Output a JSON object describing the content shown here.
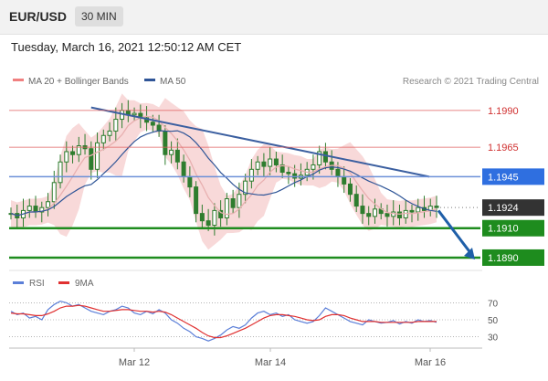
{
  "header": {
    "symbol": "EUR/USD",
    "timeframe": "30 MIN",
    "datetime": "Tuesday, March 16, 2021 12:50:12 AM CET"
  },
  "legend": {
    "ma20_bb": "MA 20 + Bollinger Bands",
    "ma50": "MA 50",
    "copyright": "Research © 2021 Trading Central"
  },
  "colors": {
    "ma20": "#e8b0b0",
    "ma50": "#2f5597",
    "bollinger": "#f5cccc",
    "candle": "#2e7d2e",
    "support": "#1e8c1e",
    "resistance": "#e06060",
    "trendline": "#3b5fa0",
    "pivot_line": "#6b8fd8",
    "current": "#333333",
    "arrow": "#1f5fa8",
    "rsi": "#5b7fd8",
    "rsi_ma": "#e03030"
  },
  "chart_data": [
    {
      "type": "candlestick",
      "title": "EUR/USD",
      "timeframe": "30 MIN",
      "x_ticks": [
        "Mar 12",
        "Mar 14",
        "Mar 16"
      ],
      "ylim": [
        1.1885,
        1.1998
      ],
      "close_path": [
        1.192,
        1.1917,
        1.1922,
        1.1925,
        1.1921,
        1.1924,
        1.1928,
        1.1941,
        1.1955,
        1.1962,
        1.196,
        1.1966,
        1.1964,
        1.195,
        1.1968,
        1.1973,
        1.1976,
        1.1984,
        1.199,
        1.1987,
        1.1988,
        1.1985,
        1.1982,
        1.198,
        1.1976,
        1.196,
        1.1963,
        1.1955,
        1.1945,
        1.1938,
        1.192,
        1.1915,
        1.1912,
        1.1922,
        1.1917,
        1.193,
        1.1924,
        1.1933,
        1.1942,
        1.195,
        1.1955,
        1.1952,
        1.1957,
        1.1953,
        1.1948,
        1.1947,
        1.1944,
        1.1946,
        1.195,
        1.1953,
        1.1962,
        1.1955,
        1.195,
        1.1945,
        1.194,
        1.1933,
        1.1925,
        1.192,
        1.1918,
        1.1923,
        1.192,
        1.1918,
        1.1921,
        1.1917,
        1.1922,
        1.1921,
        1.1924,
        1.1922,
        1.1925,
        1.1924
      ],
      "levels": [
        {
          "label": "1.1990",
          "value": 1.199,
          "kind": "resistance"
        },
        {
          "label": "1.1965",
          "value": 1.1965,
          "kind": "resistance"
        },
        {
          "label": "1.1945",
          "value": 1.1945,
          "kind": "pivot"
        },
        {
          "label": "1.1924",
          "value": 1.1924,
          "kind": "current"
        },
        {
          "label": "1.1910",
          "value": 1.191,
          "kind": "support"
        },
        {
          "label": "1.1890",
          "value": 1.189,
          "kind": "support"
        }
      ],
      "series": [
        {
          "name": "MA 20 + Bollinger Bands"
        },
        {
          "name": "MA 50"
        }
      ],
      "trendline": {
        "from": 1.1992,
        "to": 1.1945
      },
      "forecast_target": 1.189
    },
    {
      "type": "line",
      "legend": [
        "RSI",
        "9MA"
      ],
      "y_ticks": [
        70,
        50,
        30
      ],
      "ylim": [
        22,
        78
      ],
      "rsi": [
        60,
        56,
        58,
        52,
        54,
        50,
        62,
        68,
        72,
        70,
        66,
        68,
        64,
        60,
        58,
        56,
        60,
        62,
        66,
        64,
        58,
        56,
        60,
        57,
        62,
        58,
        50,
        46,
        40,
        36,
        30,
        28,
        25,
        28,
        32,
        38,
        42,
        40,
        44,
        52,
        58,
        60,
        56,
        58,
        54,
        56,
        50,
        48,
        46,
        48,
        55,
        64,
        60,
        56,
        52,
        48,
        46,
        44,
        50,
        48,
        46,
        47,
        49,
        45,
        48,
        46,
        50,
        48,
        49,
        47
      ],
      "rsi_ma": [
        58,
        57,
        57,
        56,
        55,
        55,
        57,
        60,
        64,
        66,
        66,
        67,
        66,
        64,
        62,
        60,
        60,
        61,
        62,
        62,
        61,
        60,
        60,
        59,
        60,
        59,
        56,
        52,
        48,
        44,
        40,
        35,
        31,
        29,
        29,
        31,
        34,
        37,
        40,
        44,
        48,
        52,
        55,
        56,
        56,
        55,
        54,
        52,
        50,
        49,
        50,
        54,
        56,
        56,
        55,
        52,
        50,
        48,
        48,
        48,
        47,
        47,
        47,
        47,
        47,
        47,
        48,
        48,
        48,
        48
      ]
    }
  ]
}
